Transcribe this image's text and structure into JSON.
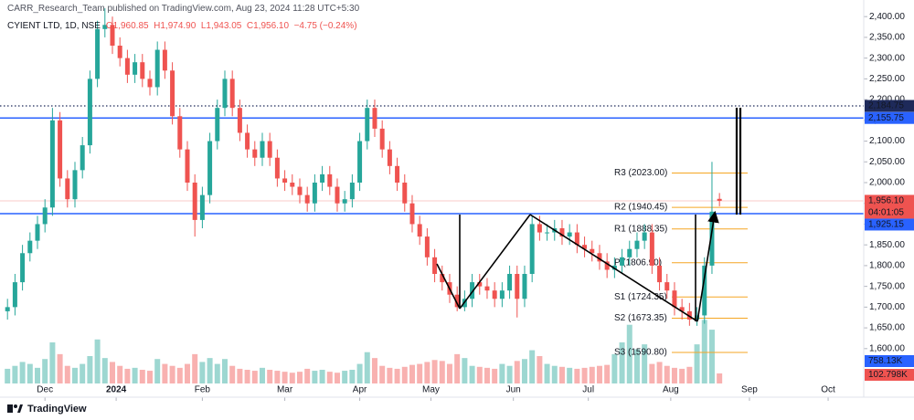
{
  "chart_data": {
    "type": "candlestick",
    "published": "CARR_Research_Team published on TradingView.com, Aug 23, 2024 11:28 UTC+5:30",
    "symbol": "CYIENT LTD, 1D, NSE",
    "ohlc_text": "O1,960.85  H1,974.90  L1,943.05  C1,956.10  −4.75 (−0.24%)",
    "footer": "TradingView",
    "up_color": "#26a69a",
    "down_color": "#ef5350",
    "x": [
      0,
      2,
      4,
      6,
      8,
      10,
      12,
      14,
      16,
      18,
      20,
      22,
      24,
      26,
      28,
      30,
      32,
      34,
      36,
      38,
      40,
      42,
      44,
      46,
      48,
      50,
      52,
      54,
      56,
      58,
      60,
      62,
      64,
      66,
      68,
      70,
      72,
      74,
      76,
      78,
      80,
      82,
      84,
      86,
      88,
      90,
      92,
      94,
      96,
      98,
      100,
      102,
      104,
      106,
      108,
      110,
      112,
      114,
      116,
      118,
      120,
      122,
      124,
      126,
      128,
      130,
      132,
      134,
      136,
      138,
      140,
      142,
      144,
      146,
      148,
      150,
      152,
      154,
      156,
      158,
      160,
      162,
      164,
      166,
      168,
      170,
      172,
      174,
      176,
      178,
      180,
      182,
      184,
      186,
      188,
      190
    ],
    "open": [
      1690,
      1700,
      1760,
      1830,
      1860,
      1900,
      1940,
      2150,
      2010,
      1960,
      2030,
      2090,
      2250,
      2370,
      2380,
      2330,
      2300,
      2260,
      2290,
      2250,
      2230,
      2320,
      2270,
      2160,
      2080,
      2000,
      1910,
      1970,
      2100,
      2180,
      2250,
      2180,
      2120,
      2080,
      2060,
      2100,
      2060,
      2010,
      2000,
      1990,
      1970,
      1950,
      2000,
      2020,
      1990,
      1950,
      1960,
      2000,
      2100,
      2180,
      2130,
      2080,
      2040,
      2000,
      1950,
      1900,
      1870,
      1820,
      1780,
      1760,
      1730,
      1700,
      1720,
      1760,
      1750,
      1740,
      1720,
      1740,
      1780,
      1720,
      1780,
      1900,
      1880,
      1880,
      1890,
      1870,
      1880,
      1850,
      1840,
      1830,
      1810,
      1790,
      1800,
      1820,
      1840,
      1860,
      1880,
      1800,
      1760,
      1740,
      1700,
      1690,
      1670,
      1680,
      1800,
      1960.85
    ],
    "high": [
      1720,
      1780,
      1850,
      1880,
      1920,
      1960,
      2180,
      2170,
      2030,
      2050,
      2110,
      2270,
      2390,
      2420,
      2400,
      2350,
      2320,
      2310,
      2310,
      2270,
      2340,
      2340,
      2290,
      2180,
      2100,
      2020,
      1990,
      2120,
      2200,
      2270,
      2270,
      2200,
      2140,
      2100,
      2120,
      2120,
      2080,
      2030,
      2020,
      2010,
      1990,
      2020,
      2040,
      2040,
      2010,
      1980,
      2020,
      2120,
      2200,
      2200,
      2150,
      2100,
      2060,
      2020,
      1970,
      1920,
      1890,
      1840,
      1800,
      1780,
      1750,
      1740,
      1780,
      1780,
      1770,
      1760,
      1760,
      1800,
      1800,
      1800,
      1920,
      1920,
      1900,
      1910,
      1910,
      1900,
      1900,
      1870,
      1860,
      1850,
      1830,
      1820,
      1840,
      1860,
      1880,
      1900,
      1900,
      1820,
      1780,
      1760,
      1720,
      1710,
      1700,
      1820,
      2050,
      1974.9
    ],
    "low": [
      1670,
      1680,
      1740,
      1810,
      1840,
      1880,
      1920,
      1990,
      1940,
      1940,
      2010,
      2070,
      2230,
      2350,
      2310,
      2280,
      2240,
      2240,
      2230,
      2210,
      2210,
      2250,
      2140,
      2060,
      1980,
      1870,
      1890,
      1950,
      2080,
      2160,
      2160,
      2100,
      2060,
      2040,
      2040,
      2040,
      1990,
      1980,
      1970,
      1950,
      1930,
      1930,
      1980,
      1970,
      1930,
      1930,
      1940,
      1980,
      2080,
      2110,
      2060,
      2020,
      1980,
      1930,
      1880,
      1850,
      1800,
      1760,
      1740,
      1710,
      1690,
      1690,
      1700,
      1730,
      1720,
      1700,
      1700,
      1720,
      1675,
      1700,
      1760,
      1860,
      1860,
      1860,
      1850,
      1850,
      1830,
      1820,
      1810,
      1790,
      1770,
      1770,
      1780,
      1800,
      1820,
      1840,
      1780,
      1740,
      1720,
      1680,
      1670,
      1655,
      1655,
      1660,
      1780,
      1943.05
    ],
    "close": [
      1700,
      1760,
      1830,
      1860,
      1900,
      1940,
      2150,
      2010,
      1960,
      2030,
      2090,
      2250,
      2370,
      2380,
      2330,
      2300,
      2260,
      2290,
      2250,
      2230,
      2320,
      2270,
      2160,
      2080,
      2000,
      1910,
      1970,
      2100,
      2180,
      2250,
      2180,
      2120,
      2080,
      2060,
      2100,
      2060,
      2010,
      2000,
      1990,
      1970,
      1950,
      2000,
      2020,
      1990,
      1950,
      1960,
      2000,
      2100,
      2180,
      2130,
      2080,
      2040,
      2000,
      1950,
      1900,
      1870,
      1820,
      1780,
      1760,
      1730,
      1700,
      1720,
      1760,
      1750,
      1740,
      1720,
      1740,
      1780,
      1720,
      1780,
      1900,
      1880,
      1880,
      1890,
      1870,
      1880,
      1850,
      1840,
      1830,
      1810,
      1790,
      1800,
      1820,
      1840,
      1860,
      1880,
      1800,
      1760,
      1740,
      1700,
      1690,
      1670,
      1680,
      1800,
      1930,
      1956.1
    ],
    "volume": [
      150,
      180,
      220,
      200,
      160,
      250,
      420,
      300,
      180,
      160,
      200,
      280,
      450,
      260,
      220,
      180,
      150,
      160,
      140,
      130,
      250,
      200,
      180,
      160,
      200,
      300,
      220,
      260,
      200,
      250,
      180,
      150,
      140,
      130,
      160,
      140,
      130,
      120,
      110,
      120,
      150,
      130,
      140,
      120,
      110,
      130,
      140,
      200,
      320,
      260,
      180,
      160,
      150,
      170,
      190,
      200,
      220,
      240,
      230,
      200,
      300,
      260,
      180,
      170,
      160,
      150,
      200,
      180,
      230,
      250,
      340,
      280,
      200,
      180,
      170,
      160,
      150,
      160,
      170,
      180,
      190,
      300,
      420,
      600,
      350,
      400,
      200,
      220,
      180,
      160,
      150,
      170,
      400,
      650,
      550,
      102.798
    ],
    "vlim": [
      0,
      700
    ],
    "volume_label": "102.798K",
    "volume_ma_label": "758.13K",
    "volume_ma_color": "#2962ff",
    "xlim": [
      -2,
      228.5
    ],
    "xticks": [
      {
        "value": 10,
        "label": "Dec"
      },
      {
        "value": 29,
        "label": "2024"
      },
      {
        "value": 52,
        "label": "Feb"
      },
      {
        "value": 74,
        "label": "Mar"
      },
      {
        "value": 94,
        "label": "Apr"
      },
      {
        "value": 113,
        "label": "May"
      },
      {
        "value": 135,
        "label": "Jun"
      },
      {
        "value": 155,
        "label": "Jul"
      },
      {
        "value": 177,
        "label": "Aug"
      },
      {
        "value": 198,
        "label": "Sep"
      },
      {
        "value": 219,
        "label": "Oct"
      }
    ],
    "ylim": [
      1516,
      2440
    ],
    "yticks": [
      {
        "value": 1600,
        "label": "1,600.00"
      },
      {
        "value": 1650,
        "label": "1,650.00"
      },
      {
        "value": 1700,
        "label": "1,700.00"
      },
      {
        "value": 1750,
        "label": "1,750.00"
      },
      {
        "value": 1800,
        "label": "1,800.00"
      },
      {
        "value": 1850,
        "label": "1,850.00"
      },
      {
        "value": 1900,
        "label": "1,900.00"
      },
      {
        "value": 1950,
        "label": "1,950.00"
      },
      {
        "value": 2000,
        "label": "2,000.00"
      },
      {
        "value": 2050,
        "label": "2,050.00"
      },
      {
        "value": 2100,
        "label": "2,100.00"
      },
      {
        "value": 2150,
        "label": "2,150.00"
      },
      {
        "value": 2200,
        "label": "2,200.00"
      },
      {
        "value": 2250,
        "label": "2,250.00"
      },
      {
        "value": 2300,
        "label": "2,300.00"
      },
      {
        "value": 2350,
        "label": "2,350.00"
      },
      {
        "value": 2400,
        "label": "2,400.00"
      }
    ],
    "levels": [
      {
        "value": 2184.75,
        "label": "2,184.75",
        "color": "#1e2a5a",
        "style": "dotted"
      },
      {
        "value": 2155.75,
        "label": "2,155.75",
        "color": "#2962ff",
        "style": "solid"
      },
      {
        "value": 1925.15,
        "label": "1,925.15",
        "color": "#2962ff",
        "style": "solid"
      }
    ],
    "last_price": {
      "value": 1956.1,
      "label": "1,956.10",
      "countdown": "04:01:05",
      "color": "#ef5350"
    },
    "pivot_color": "#f5a623",
    "pivots": [
      {
        "value": 2023,
        "label": "R3 (2023.00)"
      },
      {
        "value": 1940.45,
        "label": "R2 (1940.45)"
      },
      {
        "value": 1888.35,
        "label": "R1 (1888.35)"
      },
      {
        "value": 1806.9,
        "label": "P (1806.90)"
      },
      {
        "value": 1724.35,
        "label": "S1 (1724.35)"
      },
      {
        "value": 1673.35,
        "label": "S2 (1673.35)"
      },
      {
        "value": 1590.8,
        "label": "S3 (1590.80)"
      }
    ]
  }
}
